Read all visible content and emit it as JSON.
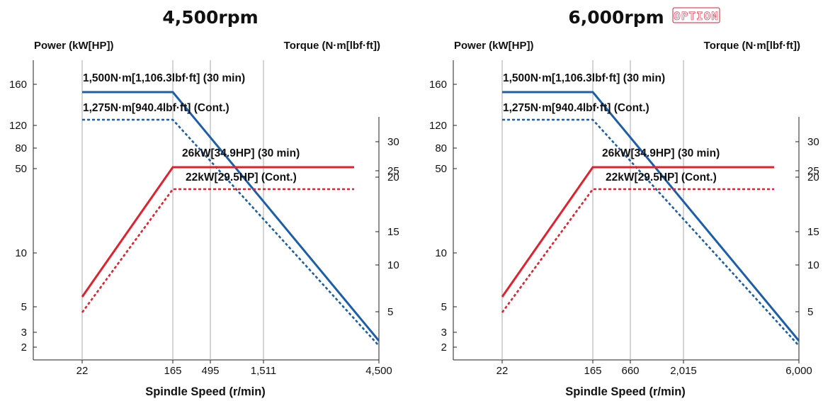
{
  "chart_data": [
    {
      "type": "line",
      "title": "4,500rpm",
      "badge": "",
      "ylabel_left": "Power (kW[HP])",
      "ylabel_right": "Torque (N·m[lbf·ft])",
      "xlabel": "Spindle Speed (r/min)",
      "x_ticks": [
        "22",
        "165",
        "495",
        "1,511",
        "4,500"
      ],
      "y_left_ticks": [
        "160",
        "120",
        "80",
        "50",
        "10",
        "5",
        "3",
        "2"
      ],
      "y_right_ticks": [
        "30",
        "25",
        "20",
        "15",
        "10",
        "5"
      ],
      "annotations": [
        "1,500N·m[1,106.3lbf·ft] (30 min)",
        "1,275N·m[940.4lbf·ft] (Cont.)",
        "26kW[34.9HP] (30 min)",
        "22kW[29.5HP] (Cont.)"
      ],
      "series": [
        {
          "name": "1,500N·m[1,106.3lbf·ft] (30 min)",
          "color": "#1c5ea8",
          "style": "solid",
          "points": [
            [
              22,
              1500
            ],
            [
              165,
              1500
            ],
            [
              4500,
              55
            ]
          ]
        },
        {
          "name": "1,275N·m[940.4lbf·ft] (Cont.)",
          "color": "#1c5ea8",
          "style": "dotted",
          "points": [
            [
              22,
              1275
            ],
            [
              165,
              1275
            ],
            [
              4500,
              47
            ]
          ]
        },
        {
          "name": "26kW[34.9HP] (30 min)",
          "color": "#e3202b",
          "style": "solid",
          "points": [
            [
              22,
              3.5
            ],
            [
              165,
              26
            ],
            [
              4500,
              26
            ]
          ]
        },
        {
          "name": "22kW[29.5HP] (Cont.)",
          "color": "#e3202b",
          "style": "dotted",
          "points": [
            [
              22,
              2.9
            ],
            [
              165,
              22
            ],
            [
              4500,
              22
            ]
          ]
        }
      ]
    },
    {
      "type": "line",
      "title": "6,000rpm",
      "badge": "OPTION",
      "ylabel_left": "Power (kW[HP])",
      "ylabel_right": "Torque (N·m[lbf·ft])",
      "xlabel": "Spindle Speed (r/min)",
      "x_ticks": [
        "22",
        "165",
        "660",
        "2,015",
        "6,000"
      ],
      "y_left_ticks": [
        "160",
        "120",
        "80",
        "50",
        "10",
        "5",
        "3",
        "2"
      ],
      "y_right_ticks": [
        "30",
        "25",
        "20",
        "15",
        "10",
        "5"
      ],
      "annotations": [
        "1,500N·m[1,106.3lbf·ft] (30 min)",
        "1,275N·m[940.4lbf·ft] (Cont.)",
        "26kW[34.9HP] (30 min)",
        "22kW[29.5HP] (Cont.)"
      ],
      "series": [
        {
          "name": "1,500N·m[1,106.3lbf·ft] (30 min)",
          "color": "#1c5ea8",
          "style": "solid",
          "points": [
            [
              22,
              1500
            ],
            [
              165,
              1500
            ],
            [
              6000,
              41
            ]
          ]
        },
        {
          "name": "1,275N·m[940.4lbf·ft] (Cont.)",
          "color": "#1c5ea8",
          "style": "dotted",
          "points": [
            [
              22,
              1275
            ],
            [
              165,
              1275
            ],
            [
              6000,
              35
            ]
          ]
        },
        {
          "name": "26kW[34.9HP] (30 min)",
          "color": "#e3202b",
          "style": "solid",
          "points": [
            [
              22,
              3.5
            ],
            [
              165,
              26
            ],
            [
              6000,
              26
            ]
          ]
        },
        {
          "name": "22kW[29.5HP] (Cont.)",
          "color": "#e3202b",
          "style": "dotted",
          "points": [
            [
              22,
              2.9
            ],
            [
              165,
              22
            ],
            [
              6000,
              22
            ]
          ]
        }
      ]
    }
  ]
}
